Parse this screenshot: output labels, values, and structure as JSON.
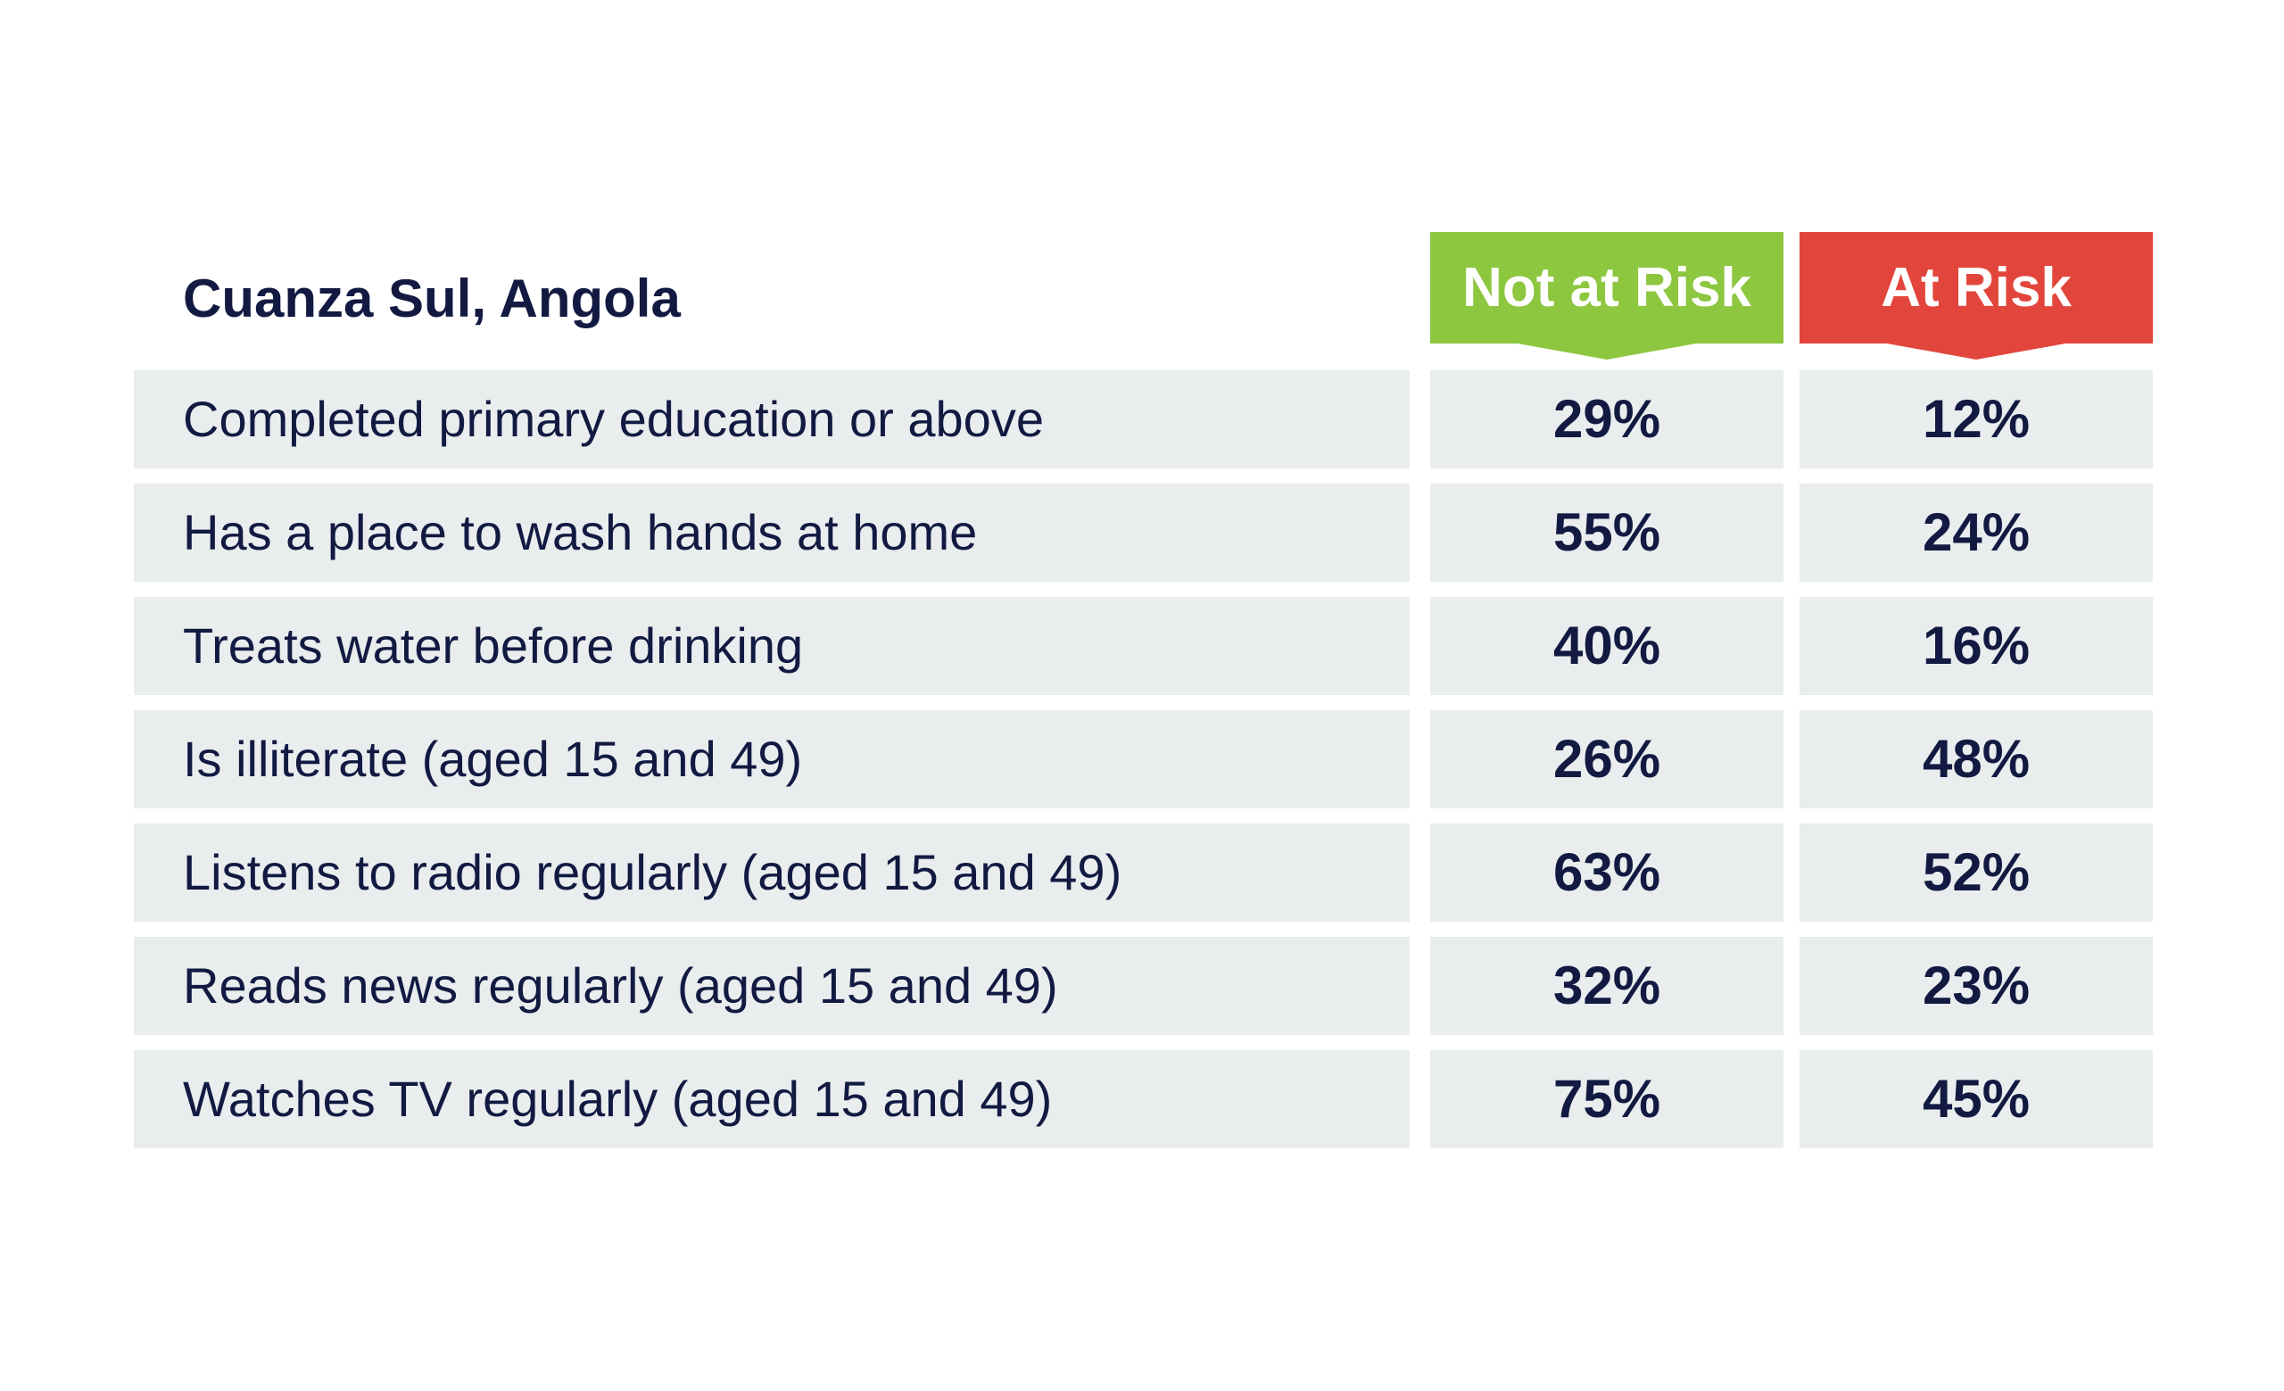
{
  "chart_data": {
    "type": "table",
    "title": "Cuanza Sul, Angola",
    "columns": [
      {
        "label": "Not at Risk",
        "color": "#8dc63f"
      },
      {
        "label": "At Risk",
        "color": "#e2453c"
      }
    ],
    "rows": [
      {
        "label": "Completed primary education or above",
        "values": [
          "29%",
          "12%"
        ]
      },
      {
        "label": "Has a place to wash hands at home",
        "values": [
          "55%",
          "24%"
        ]
      },
      {
        "label": "Treats water before drinking",
        "values": [
          "40%",
          "16%"
        ]
      },
      {
        "label": "Is illiterate (aged 15 and 49)",
        "values": [
          "26%",
          "48%"
        ]
      },
      {
        "label": "Listens to radio regularly (aged 15 and 49)",
        "values": [
          "63%",
          "52%"
        ]
      },
      {
        "label": "Reads news regularly (aged 15 and 49)",
        "values": [
          "32%",
          "23%"
        ]
      },
      {
        "label": "Watches TV regularly (aged 15 and 49)",
        "values": [
          "75%",
          "45%"
        ]
      }
    ]
  }
}
